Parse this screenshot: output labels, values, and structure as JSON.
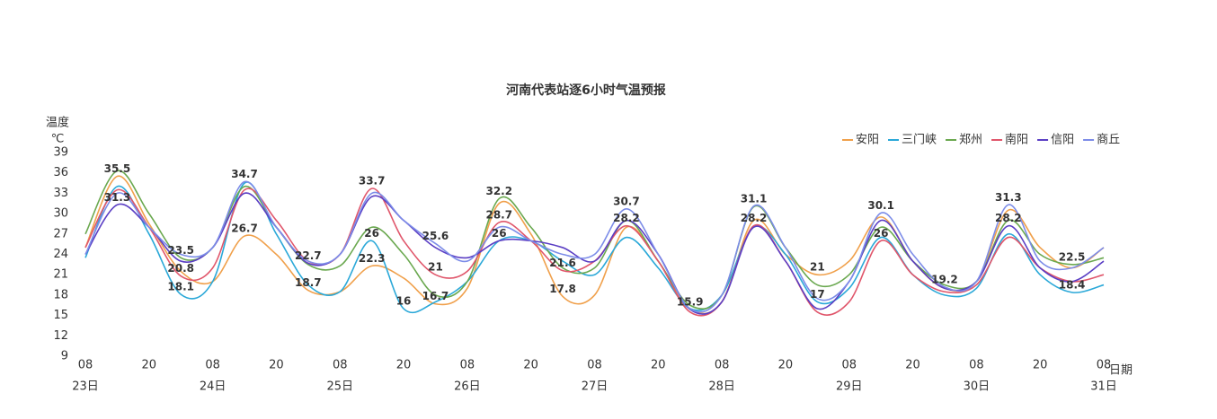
{
  "chart_data": {
    "type": "line",
    "title": "河南代表站逐6小时气温预报",
    "ylabel": "温度",
    "yunit": "℃",
    "xlabel": "日期",
    "categories": [
      "08",
      null,
      "20",
      null,
      "08",
      null,
      "20",
      null,
      "08",
      null,
      "20",
      null,
      "08",
      null,
      "20",
      null,
      "08",
      null,
      "20",
      null,
      "08",
      null,
      "20",
      null,
      "08",
      null,
      "20",
      null,
      "08",
      null,
      "20",
      null,
      "08"
    ],
    "days": [
      "23日",
      "24日",
      "25日",
      "26日",
      "27日",
      "28日",
      "29日",
      "30日",
      "31日"
    ],
    "ylim": [
      9,
      39
    ],
    "yticks": [
      9,
      12,
      15,
      18,
      21,
      24,
      27,
      30,
      33,
      36,
      39
    ],
    "legend": "top-right",
    "series": [
      {
        "name": "安阳",
        "color": "#f0a04b",
        "values": [
          25,
          35.5,
          28.5,
          21.5,
          20,
          26.7,
          24,
          18.7,
          18.5,
          22.3,
          20.5,
          16.7,
          19,
          31.5,
          27,
          17.8,
          18,
          28,
          23,
          16,
          17,
          29,
          24,
          21,
          23,
          29.5,
          23,
          19,
          20,
          30.5,
          25,
          22,
          25
        ],
        "value_labels": [
          null,
          "35.5",
          null,
          null,
          null,
          "26.7",
          null,
          "18.7",
          null,
          "22.3",
          null,
          "16.7",
          null,
          null,
          null,
          "17.8",
          null,
          null,
          null,
          null,
          null,
          null,
          null,
          "21",
          null,
          null,
          null,
          null,
          null,
          null,
          null,
          null,
          null
        ]
      },
      {
        "name": "三门峡",
        "color": "#2aa8d8",
        "values": [
          23.5,
          34,
          27,
          18.1,
          20,
          34.5,
          27,
          19.5,
          18.5,
          26,
          16,
          17,
          20,
          26,
          26,
          23,
          21,
          26.5,
          22,
          16,
          18,
          28,
          24,
          17,
          19,
          26.5,
          21,
          18,
          19,
          27,
          21,
          18.4,
          19.5
        ],
        "value_labels": [
          null,
          null,
          null,
          "18.1",
          null,
          null,
          null,
          null,
          null,
          "26",
          "16",
          null,
          null,
          "26",
          null,
          null,
          null,
          null,
          null,
          null,
          null,
          null,
          null,
          "17",
          null,
          null,
          null,
          null,
          null,
          null,
          null,
          "18.4",
          null
        ]
      },
      {
        "name": "郑州",
        "color": "#6aa84f",
        "values": [
          27,
          36.3,
          30,
          23.5,
          25,
          34,
          28,
          22.5,
          22.3,
          28,
          24,
          18,
          20,
          32.2,
          28,
          22,
          22,
          29,
          23,
          16.5,
          18,
          31,
          25,
          19.5,
          21,
          28,
          23,
          19.5,
          20,
          29,
          24,
          22.5,
          23.5
        ],
        "value_labels": [
          null,
          null,
          null,
          "23.5",
          null,
          null,
          null,
          null,
          null,
          null,
          null,
          null,
          null,
          "32.2",
          null,
          null,
          null,
          null,
          null,
          null,
          null,
          null,
          null,
          null,
          null,
          null,
          null,
          null,
          null,
          null,
          null,
          "22.5",
          null
        ]
      },
      {
        "name": "南阳",
        "color": "#e0566b",
        "values": [
          25,
          33.5,
          28,
          20.8,
          22,
          33.5,
          29,
          23,
          24,
          33.7,
          26,
          21,
          21.5,
          28.7,
          26,
          21.6,
          23,
          28.2,
          23,
          15.5,
          17,
          28.2,
          23,
          15.5,
          17,
          26,
          21,
          18.5,
          19.5,
          26.5,
          22,
          20,
          21
        ],
        "value_labels": [
          null,
          null,
          null,
          "20.8",
          null,
          null,
          null,
          null,
          null,
          "33.7",
          null,
          "21",
          null,
          "28.7",
          null,
          "21.6",
          null,
          "28.2",
          null,
          null,
          null,
          "28.2",
          null,
          null,
          null,
          "26",
          null,
          null,
          null,
          null,
          null,
          null,
          null
        ]
      },
      {
        "name": "信阳",
        "color": "#5b3fc4",
        "values": [
          24,
          31.3,
          28,
          23,
          25,
          33,
          28,
          22.7,
          24,
          32.5,
          29,
          25,
          23.5,
          26,
          26,
          25,
          23,
          29,
          24,
          15.9,
          17,
          28,
          23,
          16,
          20,
          29,
          23,
          19,
          20,
          28.2,
          22,
          20,
          23
        ],
        "value_labels": [
          null,
          "31.3",
          null,
          null,
          null,
          null,
          null,
          "22.7",
          null,
          null,
          null,
          null,
          null,
          null,
          null,
          null,
          null,
          null,
          null,
          "15.9",
          null,
          null,
          null,
          null,
          null,
          null,
          null,
          null,
          null,
          "28.2",
          null,
          null,
          null
        ]
      },
      {
        "name": "商丘",
        "color": "#7c8ce8",
        "values": [
          24,
          33,
          28,
          24,
          25,
          34.7,
          28,
          23,
          24,
          33,
          29,
          25.6,
          23,
          28,
          26,
          24,
          24,
          30.7,
          24,
          16,
          18,
          31.1,
          25,
          17.5,
          20,
          30.1,
          24,
          19.2,
          20,
          31.3,
          23,
          22,
          25
        ],
        "value_labels": [
          null,
          null,
          null,
          null,
          null,
          "34.7",
          null,
          null,
          null,
          null,
          null,
          "25.6",
          null,
          null,
          null,
          null,
          null,
          "30.7",
          null,
          null,
          null,
          "31.1",
          null,
          null,
          null,
          "30.1",
          null,
          "19.2",
          null,
          "31.3",
          null,
          null,
          null
        ]
      }
    ]
  }
}
